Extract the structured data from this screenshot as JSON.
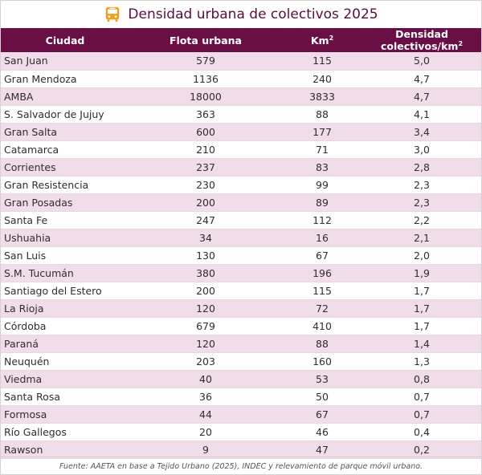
{
  "header": {
    "title": "Densidad urbana de colectivos 2025",
    "icon": "bus-icon",
    "icon_color": "#f0a020"
  },
  "table": {
    "columns": {
      "city": "Ciudad",
      "fleet": "Flota urbana",
      "area": "Km",
      "area_sup": "2",
      "density": "Densidad colectivos/km",
      "density_sup": "2"
    },
    "rows": [
      {
        "city": "San Juan",
        "fleet": "579",
        "area": "115",
        "density": "5,0"
      },
      {
        "city": "Gran Mendoza",
        "fleet": "1136",
        "area": "240",
        "density": "4,7"
      },
      {
        "city": "AMBA",
        "fleet": "18000",
        "area": "3833",
        "density": "4,7"
      },
      {
        "city": "S. Salvador de  Jujuy",
        "fleet": "363",
        "area": "88",
        "density": "4,1"
      },
      {
        "city": "Gran Salta",
        "fleet": "600",
        "area": "177",
        "density": "3,4"
      },
      {
        "city": "Catamarca",
        "fleet": "210",
        "area": "71",
        "density": "3,0"
      },
      {
        "city": "Corrientes",
        "fleet": "237",
        "area": "83",
        "density": "2,8"
      },
      {
        "city": "Gran Resistencia",
        "fleet": "230",
        "area": "99",
        "density": "2,3"
      },
      {
        "city": "Gran Posadas",
        "fleet": "200",
        "area": "89",
        "density": "2,3"
      },
      {
        "city": "Santa Fe",
        "fleet": "247",
        "area": "112",
        "density": "2,2"
      },
      {
        "city": "Ushuahia",
        "fleet": "34",
        "area": "16",
        "density": "2,1"
      },
      {
        "city": "San Luis",
        "fleet": "130",
        "area": "67",
        "density": "2,0"
      },
      {
        "city": "S.M. Tucumán",
        "fleet": "380",
        "area": "196",
        "density": "1,9"
      },
      {
        "city": "Santiago del Estero",
        "fleet": "200",
        "area": "115",
        "density": "1,7"
      },
      {
        "city": "La Rioja",
        "fleet": "120",
        "area": "72",
        "density": "1,7"
      },
      {
        "city": "Córdoba",
        "fleet": "679",
        "area": "410",
        "density": "1,7"
      },
      {
        "city": "Paraná",
        "fleet": "120",
        "area": "88",
        "density": "1,4"
      },
      {
        "city": "Neuquén",
        "fleet": "203",
        "area": "160",
        "density": "1,3"
      },
      {
        "city": "Viedma",
        "fleet": "40",
        "area": "53",
        "density": "0,8"
      },
      {
        "city": "Santa Rosa",
        "fleet": "36",
        "area": "50",
        "density": "0,7"
      },
      {
        "city": "Formosa",
        "fleet": "44",
        "area": "67",
        "density": "0,7"
      },
      {
        "city": "Río Gallegos",
        "fleet": "20",
        "area": "46",
        "density": "0,4"
      },
      {
        "city": "Rawson",
        "fleet": "9",
        "area": "47",
        "density": "0,2"
      }
    ]
  },
  "footer": {
    "source": "Fuente: AAETA en base a Tejido Urbano (2025), INDEC y relevamiento de parque móvil urbano."
  }
}
